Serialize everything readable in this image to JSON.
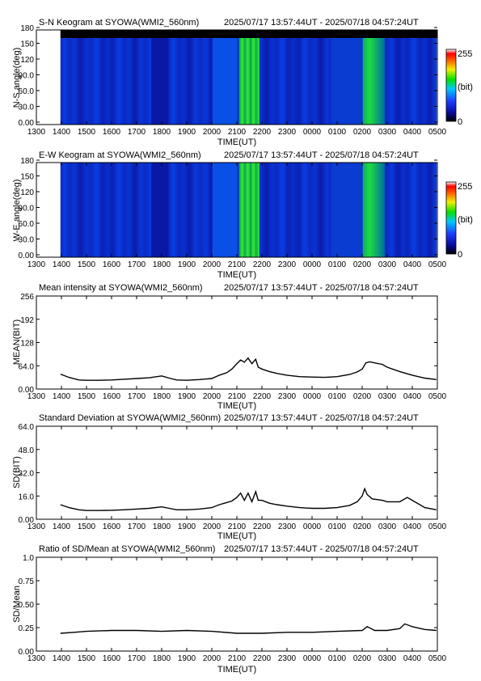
{
  "figure": {
    "time_range": "2025/07/17 13:57:44UT - 2025/07/18 04:57:24UT",
    "time_ticks": [
      "1300",
      "1400",
      "1500",
      "1600",
      "1700",
      "1800",
      "1900",
      "2000",
      "2100",
      "2200",
      "2300",
      "0000",
      "0100",
      "0200",
      "0300",
      "0400",
      "0500"
    ],
    "xlabel": "TIME(UT)"
  },
  "chart_data": [
    {
      "type": "heatmap",
      "title": "S-N Keogram at SYOWA(WMI2_560nm)",
      "ylabel": "N-S angle(deg)",
      "yticks": [
        "0.00",
        "30.0",
        "60.0",
        "90.0",
        "120",
        "150",
        "180"
      ],
      "ylim": [
        0,
        180
      ],
      "xlim_hours_ut": [
        13,
        29
      ],
      "data_start_hour": 13.96,
      "data_end_hour": 28.96,
      "colorbar": {
        "min_label": "0",
        "max_label": "255",
        "unit_label": "(bit)"
      },
      "features": [
        {
          "start_hour": 21.1,
          "end_hour": 21.9,
          "level": "bright green bands"
        },
        {
          "start_hour": 26.1,
          "end_hour": 26.8,
          "level": "green arc near zenith"
        }
      ]
    },
    {
      "type": "heatmap",
      "title": "E-W Keogram at SYOWA(WMI2_560nm)",
      "ylabel": "W-E angle(deg)",
      "yticks": [
        "0.00",
        "30.0",
        "60.0",
        "90.0",
        "120",
        "150",
        "180"
      ],
      "ylim": [
        0,
        180
      ],
      "xlim_hours_ut": [
        13,
        29
      ],
      "data_start_hour": 13.96,
      "data_end_hour": 28.96,
      "colorbar": {
        "min_label": "0",
        "max_label": "255",
        "unit_label": "(bit)"
      },
      "features": [
        {
          "start_hour": 21.1,
          "end_hour": 21.9,
          "level": "bright green bands"
        },
        {
          "start_hour": 26.1,
          "end_hour": 26.8,
          "level": "green arc low elevation"
        }
      ]
    },
    {
      "type": "line",
      "title": "Mean intensity at SYOWA(WMI2_560nm)",
      "ylabel": "MEAN(BIT)",
      "yticks": [
        "0.00",
        "64.0",
        "128",
        "192",
        "256"
      ],
      "ylim": [
        0,
        256
      ],
      "series": [
        {
          "x": [
            13.96,
            14.3,
            14.7,
            15.0,
            15.5,
            16.0,
            16.5,
            17.0,
            17.5,
            18.0,
            18.3,
            18.6,
            19.0,
            19.5,
            20.0,
            20.3,
            20.6,
            20.8,
            21.0,
            21.15,
            21.3,
            21.45,
            21.6,
            21.75,
            21.85,
            22.0,
            22.3,
            22.6,
            23.0,
            23.5,
            24.0,
            24.5,
            25.0,
            25.5,
            25.8,
            26.0,
            26.15,
            26.3,
            26.5,
            26.8,
            27.0,
            27.5,
            28.0,
            28.5,
            28.96
          ],
          "y": [
            41,
            32,
            25,
            24,
            24,
            25,
            27,
            29,
            31,
            36,
            30,
            25,
            24,
            26,
            29,
            38,
            45,
            55,
            70,
            80,
            74,
            85,
            70,
            82,
            60,
            55,
            48,
            43,
            38,
            34,
            33,
            32,
            34,
            40,
            47,
            55,
            72,
            75,
            72,
            68,
            60,
            48,
            38,
            30,
            26
          ]
        }
      ]
    },
    {
      "type": "line",
      "title": "Standard Deviation at SYOWA(WMI2_560nm)",
      "ylabel": "SD(BIT)",
      "yticks": [
        "0.00",
        "16.0",
        "32.0",
        "48.0",
        "64.0"
      ],
      "ylim": [
        0,
        64
      ],
      "series": [
        {
          "x": [
            13.96,
            14.3,
            14.7,
            15.0,
            15.5,
            16.0,
            16.5,
            17.0,
            17.5,
            18.0,
            18.3,
            18.6,
            19.0,
            19.5,
            20.0,
            20.3,
            20.6,
            20.8,
            21.0,
            21.15,
            21.3,
            21.45,
            21.6,
            21.75,
            21.85,
            22.0,
            22.3,
            22.6,
            23.0,
            23.5,
            24.0,
            24.5,
            25.0,
            25.5,
            25.8,
            26.0,
            26.1,
            26.2,
            26.4,
            26.8,
            27.0,
            27.5,
            27.8,
            28.0,
            28.5,
            28.96
          ],
          "y": [
            10,
            8,
            6.5,
            6,
            6,
            6.2,
            6.5,
            7,
            7.5,
            8.5,
            7.5,
            6.5,
            6.5,
            7,
            8,
            10,
            11.5,
            12.5,
            15,
            18,
            13,
            18,
            12,
            19,
            13,
            13,
            11,
            10,
            9,
            8,
            7.5,
            7.5,
            8,
            9.5,
            12,
            16,
            21,
            17,
            14,
            13,
            12,
            12,
            15,
            13,
            8,
            6.5
          ]
        }
      ]
    },
    {
      "type": "line",
      "title": "Ratio of SD/Mean at SYOWA(WMI2_560nm)",
      "ylabel": "SD/Mean",
      "yticks": [
        "0.00",
        "0.25",
        "0.50",
        "0.75",
        "1.0"
      ],
      "ylim": [
        0,
        1.0
      ],
      "series": [
        {
          "x": [
            13.96,
            14.5,
            15.0,
            16.0,
            17.0,
            18.0,
            19.0,
            20.0,
            21.0,
            22.0,
            23.0,
            24.0,
            25.0,
            26.0,
            26.2,
            26.5,
            27.0,
            27.5,
            27.7,
            28.0,
            28.5,
            28.96
          ],
          "y": [
            0.19,
            0.2,
            0.21,
            0.22,
            0.22,
            0.21,
            0.22,
            0.21,
            0.19,
            0.19,
            0.2,
            0.2,
            0.21,
            0.22,
            0.26,
            0.22,
            0.22,
            0.24,
            0.29,
            0.26,
            0.23,
            0.22
          ]
        }
      ]
    }
  ]
}
